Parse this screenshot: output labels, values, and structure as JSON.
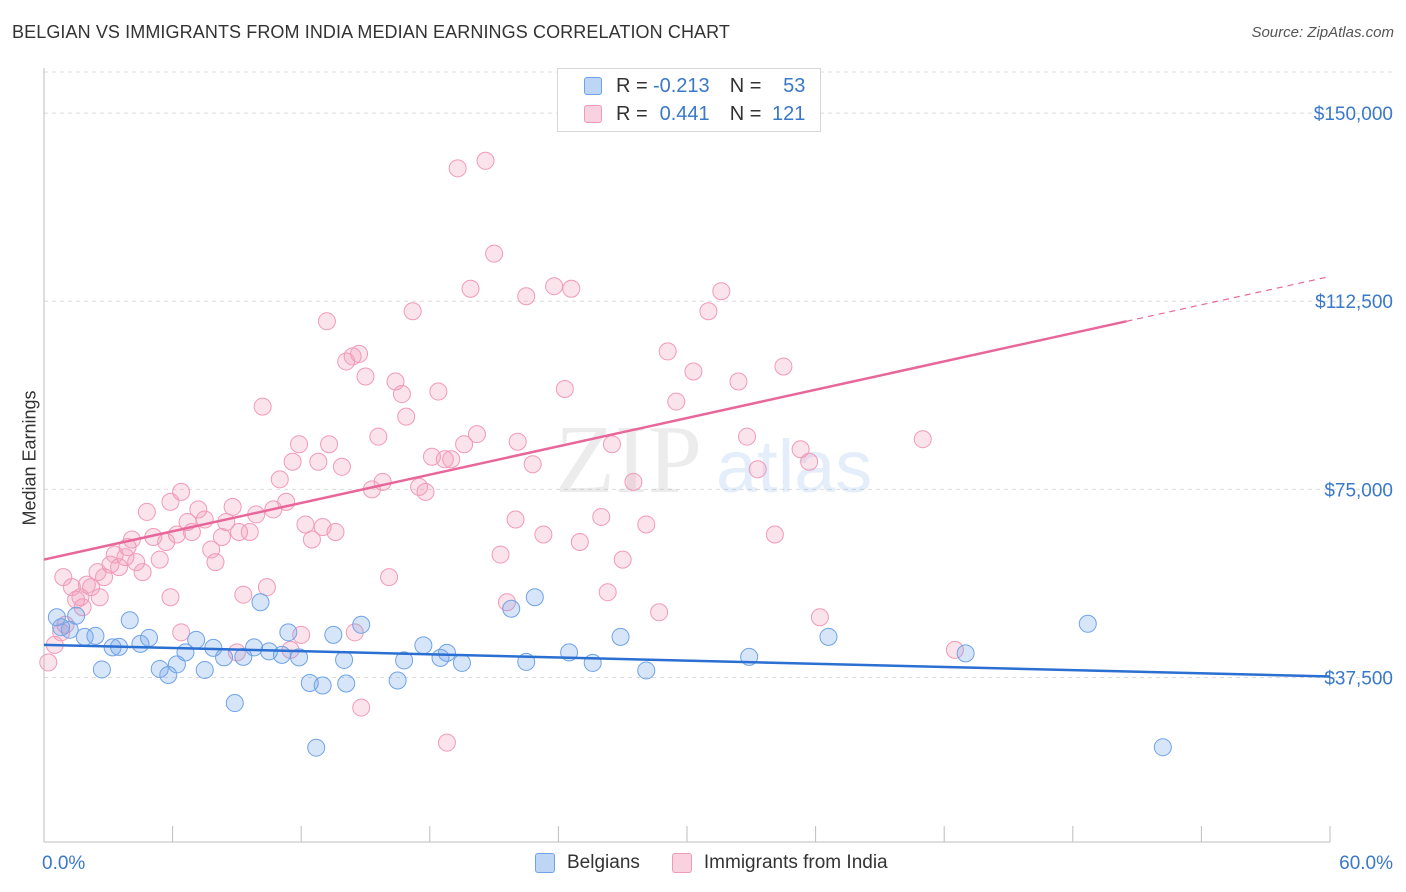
{
  "title": "BELGIAN VS IMMIGRANTS FROM INDIA MEDIAN EARNINGS CORRELATION CHART",
  "source": "Source: ZipAtlas.com",
  "watermark": {
    "zip": "ZIP",
    "atlas": "atlas"
  },
  "legend_top": [
    {
      "r_label": "R =",
      "r_value": "-0.213",
      "n_label": "N =",
      "n_value": "53",
      "color": "#6fa3e8"
    },
    {
      "r_label": "R =",
      "r_value": "0.441",
      "n_label": "N =",
      "n_value": "121",
      "color": "#f19ab7"
    }
  ],
  "legend_bottom": [
    {
      "label": "Belgians",
      "color": "#6fa3e8"
    },
    {
      "label": "Immigrants from India",
      "color": "#f19ab7"
    }
  ],
  "chart_data": {
    "type": "scatter",
    "title": "BELGIAN VS IMMIGRANTS FROM INDIA MEDIAN EARNINGS CORRELATION CHART",
    "ylabel": "Median Earnings",
    "x_tick_labels": [
      "0.0%",
      "60.0%"
    ],
    "y_tick_labels": [
      "$37,500",
      "$75,000",
      "$112,500",
      "$150,000"
    ],
    "y_ticks": [
      37500,
      75000,
      112500,
      150000
    ],
    "xlim": [
      0,
      60
    ],
    "ylim": [
      4700,
      158200
    ],
    "grid": "horizontal dashed",
    "legend_position": "top-center",
    "series": [
      {
        "name": "Belgians",
        "color": "#6fa3e8",
        "line_color": "#2a6fd1",
        "trend": {
          "x": [
            0,
            60
          ],
          "y": [
            44000,
            37700
          ],
          "dashed_to": 60
        },
        "points": [
          [
            0.6,
            49500
          ],
          [
            0.8,
            47500
          ],
          [
            1.2,
            47000
          ],
          [
            1.5,
            49800
          ],
          [
            1.9,
            45600
          ],
          [
            2.4,
            45800
          ],
          [
            2.7,
            39100
          ],
          [
            3.2,
            43500
          ],
          [
            3.5,
            43600
          ],
          [
            4.0,
            48900
          ],
          [
            4.5,
            44200
          ],
          [
            4.9,
            45400
          ],
          [
            5.4,
            39200
          ],
          [
            5.8,
            38000
          ],
          [
            6.2,
            40100
          ],
          [
            6.6,
            42500
          ],
          [
            7.1,
            45000
          ],
          [
            7.5,
            39000
          ],
          [
            7.9,
            43400
          ],
          [
            8.4,
            41500
          ],
          [
            8.9,
            32400
          ],
          [
            9.3,
            41600
          ],
          [
            9.8,
            43500
          ],
          [
            10.1,
            52500
          ],
          [
            10.5,
            42700
          ],
          [
            11.1,
            42000
          ],
          [
            11.4,
            46500
          ],
          [
            11.9,
            41500
          ],
          [
            12.4,
            36400
          ],
          [
            13.0,
            35900
          ],
          [
            13.5,
            46000
          ],
          [
            14.0,
            41000
          ],
          [
            14.1,
            36300
          ],
          [
            14.8,
            48000
          ],
          [
            16.5,
            36900
          ],
          [
            16.8,
            40900
          ],
          [
            17.7,
            43900
          ],
          [
            18.5,
            41400
          ],
          [
            18.8,
            42400
          ],
          [
            19.5,
            40400
          ],
          [
            21.8,
            51200
          ],
          [
            22.5,
            40600
          ],
          [
            22.9,
            53500
          ],
          [
            24.5,
            42500
          ],
          [
            25.6,
            40400
          ],
          [
            26.9,
            45600
          ],
          [
            28.1,
            38900
          ],
          [
            32.9,
            41600
          ],
          [
            36.6,
            45600
          ],
          [
            12.7,
            23500
          ],
          [
            43.0,
            42300
          ],
          [
            48.7,
            48200
          ],
          [
            52.2,
            23600
          ]
        ]
      },
      {
        "name": "Immigrants from India",
        "color": "#f19ab7",
        "line_color": "#e8679a",
        "trend": {
          "x": [
            0,
            50.5
          ],
          "y": [
            61000,
            108500
          ],
          "dashed_to": 60
        },
        "points": [
          [
            0.2,
            40500
          ],
          [
            0.5,
            44000
          ],
          [
            0.8,
            46500
          ],
          [
            1.0,
            48000
          ],
          [
            1.3,
            55500
          ],
          [
            1.5,
            53000
          ],
          [
            1.7,
            53500
          ],
          [
            2.0,
            56000
          ],
          [
            2.2,
            55500
          ],
          [
            2.5,
            58500
          ],
          [
            2.8,
            57500
          ],
          [
            3.1,
            60000
          ],
          [
            3.3,
            62000
          ],
          [
            3.5,
            59500
          ],
          [
            3.8,
            61500
          ],
          [
            4.1,
            65000
          ],
          [
            4.3,
            60500
          ],
          [
            4.6,
            58500
          ],
          [
            4.8,
            70500
          ],
          [
            5.1,
            65500
          ],
          [
            5.4,
            61000
          ],
          [
            5.7,
            64500
          ],
          [
            5.9,
            53500
          ],
          [
            6.2,
            66000
          ],
          [
            6.4,
            74500
          ],
          [
            6.7,
            68500
          ],
          [
            6.9,
            66500
          ],
          [
            7.2,
            71000
          ],
          [
            7.5,
            69000
          ],
          [
            7.8,
            63000
          ],
          [
            8.0,
            60500
          ],
          [
            8.3,
            65500
          ],
          [
            8.5,
            68500
          ],
          [
            8.8,
            71500
          ],
          [
            9.1,
            66500
          ],
          [
            9.3,
            54000
          ],
          [
            9.6,
            66500
          ],
          [
            9.9,
            70000
          ],
          [
            10.2,
            91500
          ],
          [
            10.4,
            55500
          ],
          [
            10.7,
            71000
          ],
          [
            11.0,
            77000
          ],
          [
            11.3,
            72500
          ],
          [
            11.6,
            80500
          ],
          [
            11.9,
            84000
          ],
          [
            12.2,
            68000
          ],
          [
            12.5,
            65000
          ],
          [
            12.8,
            80500
          ],
          [
            13.0,
            67500
          ],
          [
            13.3,
            84000
          ],
          [
            13.6,
            66500
          ],
          [
            13.9,
            79500
          ],
          [
            14.1,
            100500
          ],
          [
            14.4,
            101500
          ],
          [
            14.7,
            102000
          ],
          [
            15.0,
            97500
          ],
          [
            15.3,
            75000
          ],
          [
            15.6,
            85500
          ],
          [
            15.8,
            76500
          ],
          [
            16.1,
            57500
          ],
          [
            16.4,
            96500
          ],
          [
            16.7,
            94000
          ],
          [
            16.9,
            89500
          ],
          [
            17.2,
            110500
          ],
          [
            17.5,
            75500
          ],
          [
            17.8,
            74500
          ],
          [
            18.1,
            81500
          ],
          [
            18.4,
            94500
          ],
          [
            18.7,
            81000
          ],
          [
            19.0,
            81000
          ],
          [
            19.3,
            139000
          ],
          [
            19.6,
            84000
          ],
          [
            19.9,
            115000
          ],
          [
            20.2,
            86000
          ],
          [
            20.6,
            140500
          ],
          [
            21.0,
            122000
          ],
          [
            21.3,
            62000
          ],
          [
            21.6,
            52500
          ],
          [
            22.1,
            84500
          ],
          [
            22.5,
            113500
          ],
          [
            22.8,
            80000
          ],
          [
            23.3,
            66000
          ],
          [
            23.8,
            115500
          ],
          [
            24.3,
            95000
          ],
          [
            24.6,
            115000
          ],
          [
            25.0,
            64500
          ],
          [
            26.0,
            69500
          ],
          [
            26.5,
            84000
          ],
          [
            27.0,
            61000
          ],
          [
            27.5,
            76500
          ],
          [
            28.1,
            68000
          ],
          [
            28.7,
            50500
          ],
          [
            29.1,
            102500
          ],
          [
            29.5,
            92500
          ],
          [
            30.3,
            98500
          ],
          [
            31.0,
            110500
          ],
          [
            32.4,
            96500
          ],
          [
            32.8,
            85500
          ],
          [
            33.3,
            79000
          ],
          [
            34.1,
            66000
          ],
          [
            34.5,
            99500
          ],
          [
            35.3,
            83000
          ],
          [
            35.7,
            80500
          ],
          [
            36.2,
            49500
          ],
          [
            41.0,
            85000
          ],
          [
            42.5,
            43000
          ],
          [
            13.2,
            108500
          ],
          [
            9.0,
            42500
          ],
          [
            11.5,
            43000
          ],
          [
            12.0,
            46000
          ],
          [
            14.5,
            46500
          ],
          [
            14.8,
            31500
          ],
          [
            18.8,
            24500
          ],
          [
            31.6,
            114500
          ],
          [
            26.3,
            54500
          ],
          [
            22.0,
            69000
          ],
          [
            6.4,
            46500
          ],
          [
            0.9,
            57500
          ],
          [
            1.8,
            51500
          ],
          [
            2.6,
            53500
          ],
          [
            5.9,
            72500
          ],
          [
            3.9,
            63500
          ]
        ]
      }
    ]
  }
}
